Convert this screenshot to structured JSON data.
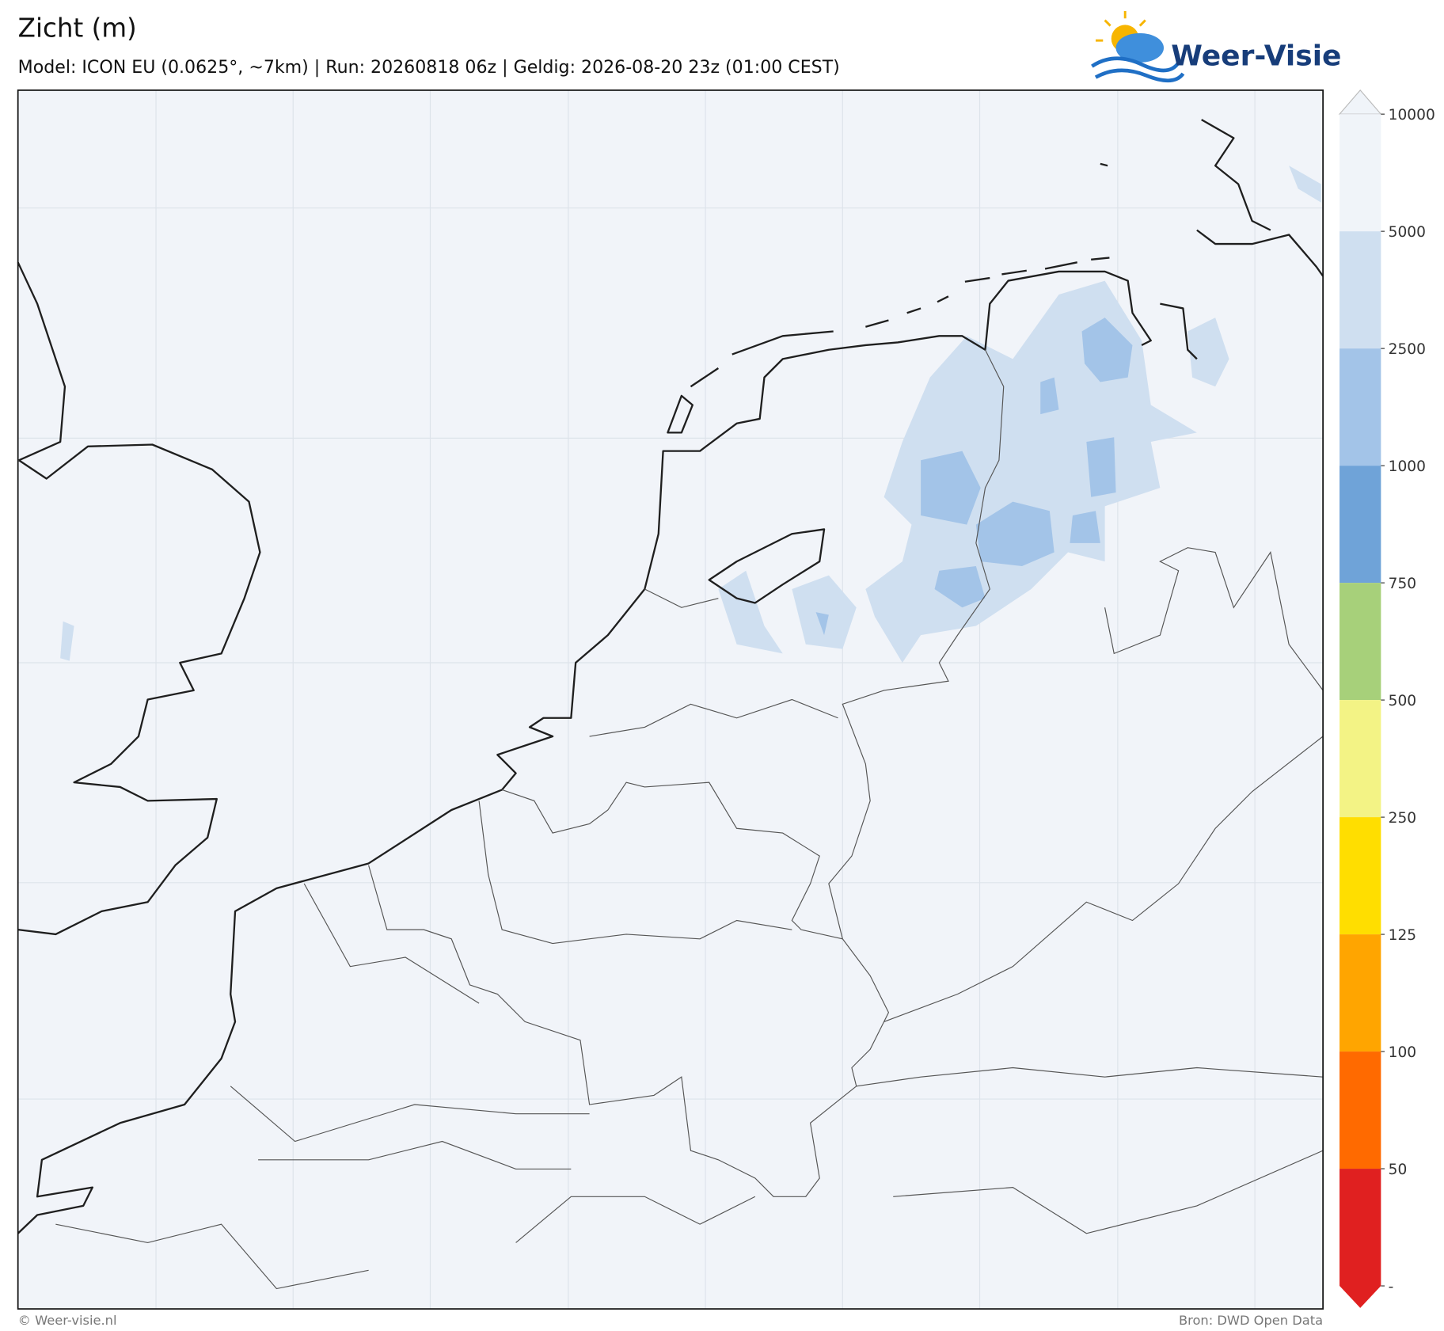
{
  "header": {
    "title": "Zicht (m)",
    "subtitle": "Model: ICON EU (0.0625°, ~7km)  |  Run: 20260818 06z  |  Geldig: 2026-08-20 23z (01:00 CEST)"
  },
  "logo": {
    "text": "Weer-Visie"
  },
  "colorbar": {
    "ticks": [
      "10000",
      "5000",
      "2500",
      "1000",
      "750",
      "500",
      "250",
      "125",
      "100",
      "50",
      "-"
    ],
    "colors": [
      "#f0f4f9",
      "#cfdff0",
      "#a3c4e8",
      "#6fa3d8",
      "#a7d07a",
      "#f3f385",
      "#ffde00",
      "#ffa500",
      "#ff6a00",
      "#e02020"
    ]
  },
  "footer": {
    "left": "© Weer-visie.nl",
    "right": "Bron: DWD Open Data"
  }
}
